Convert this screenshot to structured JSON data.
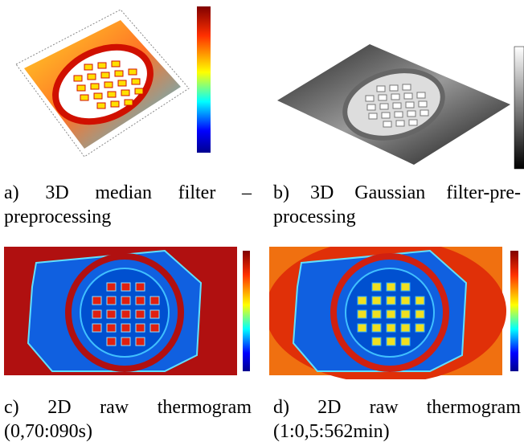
{
  "panels": [
    {
      "caption": "a) 3D median filter – preprocessing"
    },
    {
      "caption": "b) 3D Gaussian filter-pre-processing"
    },
    {
      "caption": "c) 2D raw thermogram (0,70:090s)"
    },
    {
      "caption": "d) 2D raw thermogram (1:0,5:562min)"
    }
  ]
}
